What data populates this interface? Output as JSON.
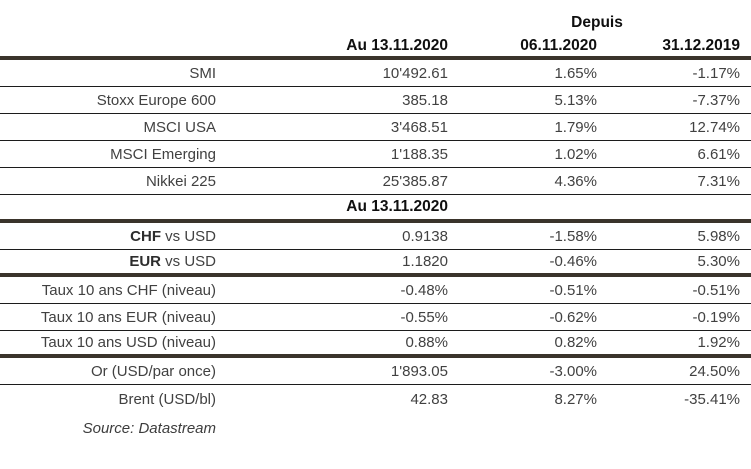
{
  "header": {
    "depuis_label": "Depuis",
    "col_asof": "Au 13.11.2020",
    "col_since_1": "06.11.2020",
    "col_since_2": "31.12.2019"
  },
  "section2_header": "Au 13.11.2020",
  "index_rows": [
    {
      "label_bold": "",
      "label": "SMI",
      "asof": "10'492.61",
      "since1": "1.65%",
      "since2": "-1.17%"
    },
    {
      "label_bold": "",
      "label": "Stoxx Europe 600",
      "asof": "385.18",
      "since1": "5.13%",
      "since2": "-7.37%"
    },
    {
      "label_bold": "",
      "label": "MSCI USA",
      "asof": "3'468.51",
      "since1": "1.79%",
      "since2": "12.74%"
    },
    {
      "label_bold": "",
      "label": "MSCI Emerging",
      "asof": "1'188.35",
      "since1": "1.02%",
      "since2": "6.61%"
    },
    {
      "label_bold": "",
      "label": "Nikkei 225",
      "asof": "25'385.87",
      "since1": "4.36%",
      "since2": "7.31%"
    }
  ],
  "market_rows": [
    {
      "label_bold": "CHF",
      "label": " vs USD",
      "asof": "0.9138",
      "since1": "-1.58%",
      "since2": "5.98%"
    },
    {
      "label_bold": "EUR",
      "label": " vs USD",
      "asof": "1.1820",
      "since1": "-0.46%",
      "since2": "5.30%"
    },
    {
      "label_bold": "",
      "label": "Taux 10 ans CHF (niveau)",
      "asof": "-0.48%",
      "since1": "-0.51%",
      "since2": "-0.51%"
    },
    {
      "label_bold": "",
      "label": "Taux 10 ans EUR (niveau)",
      "asof": "-0.55%",
      "since1": "-0.62%",
      "since2": "-0.19%"
    },
    {
      "label_bold": "",
      "label": "Taux 10 ans USD (niveau)",
      "asof": "0.88%",
      "since1": "0.82%",
      "since2": "1.92%"
    },
    {
      "label_bold": "",
      "label": "Or (USD/par once)",
      "asof": "1'893.05",
      "since1": "-3.00%",
      "since2": "24.50%"
    },
    {
      "label_bold": "",
      "label": "Brent (USD/bl)",
      "asof": "42.83",
      "since1": "8.27%",
      "since2": "-35.41%"
    }
  ],
  "source_label": "Source: Datastream",
  "colors": {
    "thick_rule": "#3a342b",
    "thin_rule": "#1c1c1c",
    "header_text": "#0f0f0f",
    "data_text": "#414141",
    "background": "#ffffff"
  }
}
